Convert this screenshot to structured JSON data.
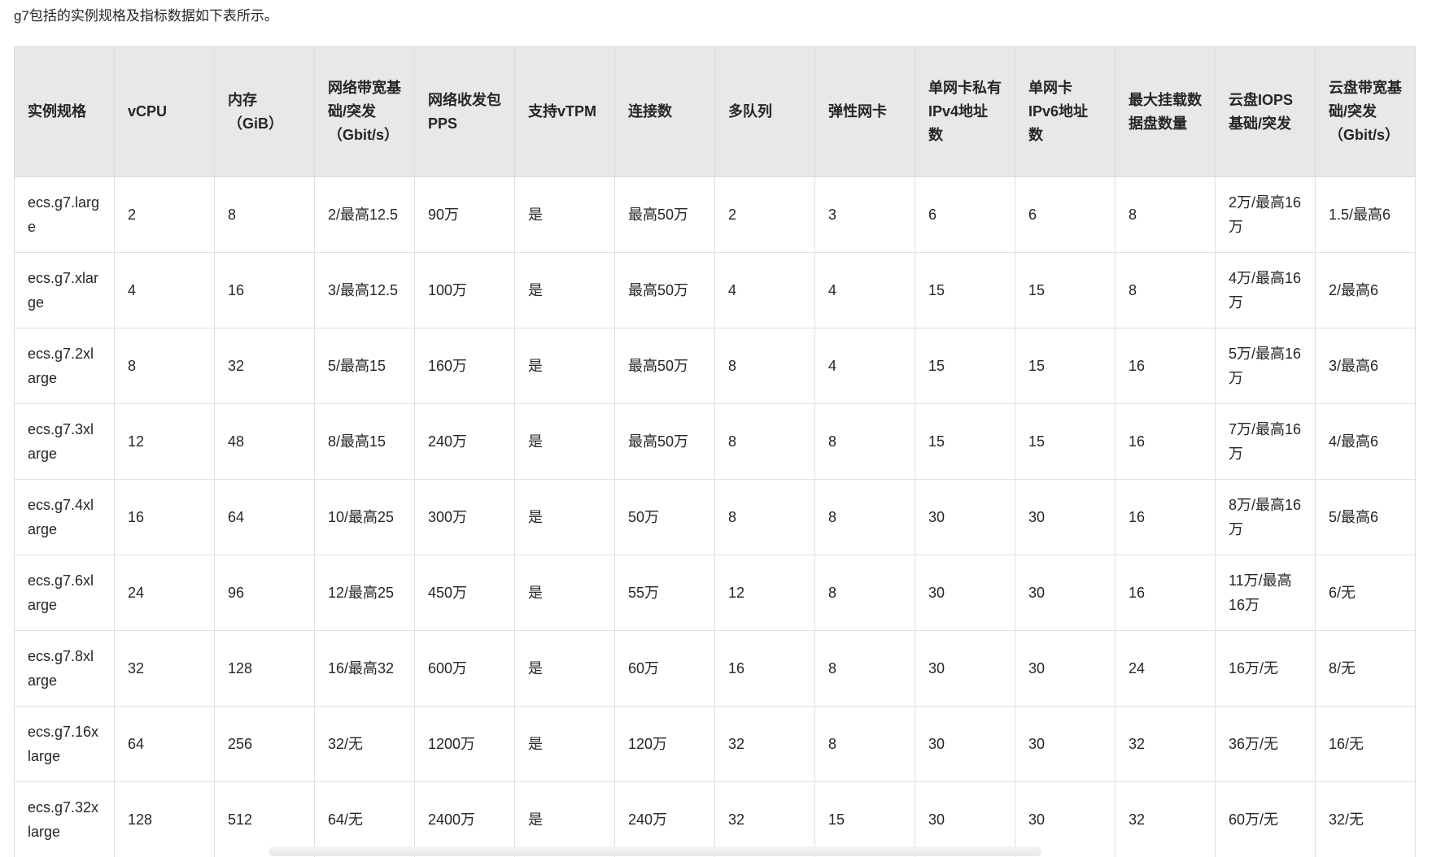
{
  "page": {
    "intro_text": "g7包括的实例规格及指标数据如下表所示。"
  },
  "table": {
    "columns": [
      "实例规格",
      "vCPU",
      "内存（GiB）",
      "网络带宽基础/突发（Gbit/s）",
      "网络收发包PPS",
      "支持vTPM",
      "连接数",
      "多队列",
      "弹性网卡",
      "单网卡私有IPv4地址数",
      "单网卡IPv6地址数",
      "最大挂载数据盘数量",
      "云盘IOPS基础/突发",
      "云盘带宽基础/突发（Gbit/s）"
    ],
    "rows": [
      [
        "ecs.g7.large",
        "2",
        "8",
        "2/最高12.5",
        "90万",
        "是",
        "最高50万",
        "2",
        "3",
        "6",
        "6",
        "8",
        "2万/最高16万",
        "1.5/最高6"
      ],
      [
        "ecs.g7.xlarge",
        "4",
        "16",
        "3/最高12.5",
        "100万",
        "是",
        "最高50万",
        "4",
        "4",
        "15",
        "15",
        "8",
        "4万/最高16万",
        "2/最高6"
      ],
      [
        "ecs.g7.2xlarge",
        "8",
        "32",
        "5/最高15",
        "160万",
        "是",
        "最高50万",
        "8",
        "4",
        "15",
        "15",
        "16",
        "5万/最高16万",
        "3/最高6"
      ],
      [
        "ecs.g7.3xlarge",
        "12",
        "48",
        "8/最高15",
        "240万",
        "是",
        "最高50万",
        "8",
        "8",
        "15",
        "15",
        "16",
        "7万/最高16万",
        "4/最高6"
      ],
      [
        "ecs.g7.4xlarge",
        "16",
        "64",
        "10/最高25",
        "300万",
        "是",
        "50万",
        "8",
        "8",
        "30",
        "30",
        "16",
        "8万/最高16万",
        "5/最高6"
      ],
      [
        "ecs.g7.6xlarge",
        "24",
        "96",
        "12/最高25",
        "450万",
        "是",
        "55万",
        "12",
        "8",
        "30",
        "30",
        "16",
        "11万/最高16万",
        "6/无"
      ],
      [
        "ecs.g7.8xlarge",
        "32",
        "128",
        "16/最高32",
        "600万",
        "是",
        "60万",
        "16",
        "8",
        "30",
        "30",
        "24",
        "16万/无",
        "8/无"
      ],
      [
        "ecs.g7.16xlarge",
        "64",
        "256",
        "32/无",
        "1200万",
        "是",
        "120万",
        "32",
        "8",
        "30",
        "30",
        "32",
        "36万/无",
        "16/无"
      ],
      [
        "ecs.g7.32xlarge",
        "128",
        "512",
        "64/无",
        "2400万",
        "是",
        "240万",
        "32",
        "15",
        "30",
        "30",
        "32",
        "60万/无",
        "32/无"
      ]
    ]
  },
  "colors": {
    "header_bg": "#e8e8e8",
    "border": "#e0e0e0",
    "text": "#262626",
    "scrollbar_thumb": "#ececec"
  }
}
